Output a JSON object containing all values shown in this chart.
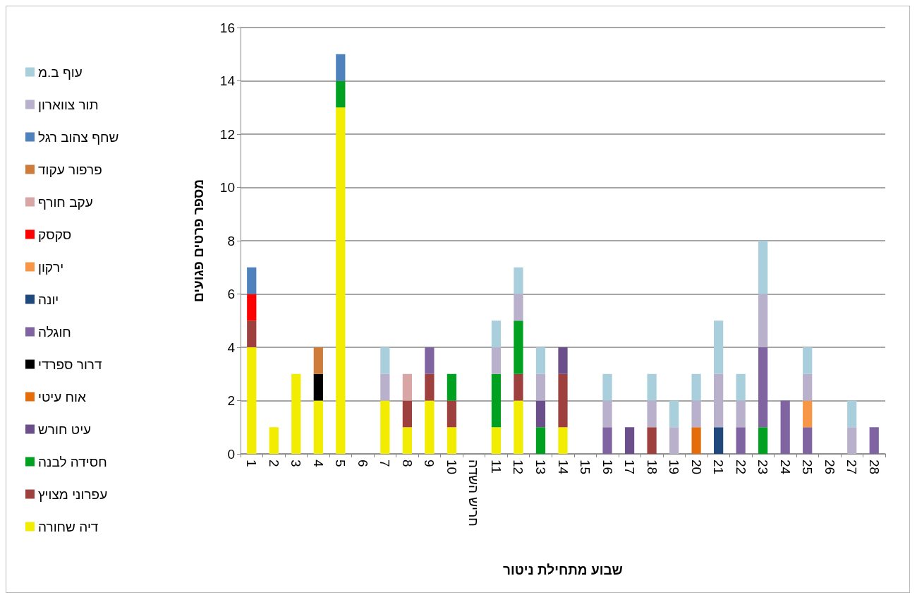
{
  "chart_data": {
    "type": "bar",
    "stacked": true,
    "xlabel": "שבוע מתחילת ניטור",
    "ylabel": "מספר פרטים פגועים",
    "categories": [
      "1",
      "2",
      "3",
      "4",
      "5",
      "6",
      "7",
      "8",
      "9",
      "10",
      "חריש השדה",
      "11",
      "12",
      "13",
      "14",
      "15",
      "16",
      "17",
      "18",
      "19",
      "20",
      "21",
      "22",
      "23",
      "24",
      "25",
      "26",
      "27",
      "28"
    ],
    "ylim": [
      0,
      16
    ],
    "yticks": [
      0,
      2,
      4,
      6,
      8,
      10,
      12,
      14,
      16
    ],
    "grid": "y",
    "legend": "left",
    "series": [
      {
        "name": "דיה שחורה",
        "color": "#f2ed00",
        "values": [
          4,
          1,
          3,
          2,
          13,
          null,
          2,
          1,
          2,
          1,
          null,
          1,
          2,
          null,
          1,
          null,
          null,
          null,
          null,
          null,
          null,
          null,
          null,
          null,
          null,
          null,
          null,
          null,
          null
        ]
      },
      {
        "name": "עפרוני מצויץ",
        "color": "#9e413e",
        "values": [
          1,
          null,
          null,
          null,
          null,
          null,
          null,
          1,
          1,
          1,
          null,
          null,
          1,
          null,
          2,
          null,
          null,
          null,
          1,
          null,
          null,
          null,
          null,
          null,
          null,
          null,
          null,
          null,
          null
        ]
      },
      {
        "name": "חסידה לבנה",
        "color": "#00a020",
        "values": [
          null,
          null,
          null,
          null,
          1,
          null,
          null,
          null,
          null,
          1,
          null,
          2,
          2,
          1,
          null,
          null,
          null,
          null,
          null,
          null,
          null,
          null,
          null,
          1,
          null,
          null,
          null,
          null,
          null
        ]
      },
      {
        "name": "עיט חורש",
        "color": "#6a4f8a",
        "values": [
          null,
          null,
          null,
          null,
          null,
          null,
          null,
          null,
          null,
          null,
          null,
          null,
          null,
          1,
          1,
          null,
          null,
          1,
          null,
          null,
          null,
          null,
          null,
          null,
          null,
          null,
          null,
          null,
          null
        ]
      },
      {
        "name": "אוח עיטי",
        "color": "#e46c0a",
        "values": [
          null,
          null,
          null,
          null,
          null,
          null,
          null,
          null,
          null,
          null,
          null,
          null,
          null,
          null,
          null,
          null,
          null,
          null,
          null,
          null,
          1,
          null,
          null,
          null,
          null,
          null,
          null,
          null,
          null
        ]
      },
      {
        "name": "דרור ספרדי",
        "color": "#000000",
        "values": [
          null,
          null,
          null,
          1,
          null,
          null,
          null,
          null,
          null,
          null,
          null,
          null,
          null,
          null,
          null,
          null,
          null,
          null,
          null,
          null,
          null,
          null,
          null,
          null,
          null,
          null,
          null,
          null,
          null
        ]
      },
      {
        "name": "חוגלה",
        "color": "#8064a2",
        "values": [
          null,
          null,
          null,
          null,
          null,
          null,
          null,
          null,
          1,
          null,
          null,
          null,
          null,
          null,
          null,
          null,
          1,
          null,
          null,
          null,
          null,
          null,
          1,
          3,
          2,
          1,
          null,
          null,
          1
        ]
      },
      {
        "name": "יונה",
        "color": "#1f497d",
        "values": [
          null,
          null,
          null,
          null,
          null,
          null,
          null,
          null,
          null,
          null,
          null,
          null,
          null,
          null,
          null,
          null,
          null,
          null,
          null,
          null,
          null,
          1,
          null,
          null,
          null,
          null,
          null,
          null,
          null
        ]
      },
      {
        "name": "ירקון",
        "color": "#f79646",
        "values": [
          null,
          null,
          null,
          null,
          null,
          null,
          null,
          null,
          null,
          null,
          null,
          null,
          null,
          null,
          null,
          null,
          null,
          null,
          null,
          null,
          null,
          null,
          null,
          null,
          null,
          1,
          null,
          null,
          null
        ]
      },
      {
        "name": "סקסק",
        "color": "#ff0000",
        "values": [
          1,
          null,
          null,
          null,
          null,
          null,
          null,
          null,
          null,
          null,
          null,
          null,
          null,
          null,
          null,
          null,
          null,
          null,
          null,
          null,
          null,
          null,
          null,
          null,
          null,
          null,
          null,
          null,
          null
        ]
      },
      {
        "name": "עקב חורף",
        "color": "#d9a6a6",
        "values": [
          null,
          null,
          null,
          null,
          null,
          null,
          null,
          1,
          null,
          null,
          null,
          null,
          null,
          null,
          null,
          null,
          null,
          null,
          null,
          null,
          null,
          null,
          null,
          null,
          null,
          null,
          null,
          null,
          null
        ]
      },
      {
        "name": "פרפור עקוד",
        "color": "#cd7c3a",
        "values": [
          null,
          null,
          null,
          1,
          null,
          null,
          null,
          null,
          null,
          null,
          null,
          null,
          null,
          null,
          null,
          null,
          null,
          null,
          null,
          null,
          null,
          null,
          null,
          null,
          null,
          null,
          null,
          null,
          null
        ]
      },
      {
        "name": "שחף צהוב רגל",
        "color": "#4f81bd",
        "values": [
          1,
          null,
          null,
          null,
          1,
          null,
          null,
          null,
          null,
          null,
          null,
          null,
          null,
          null,
          null,
          null,
          null,
          null,
          null,
          null,
          null,
          null,
          null,
          null,
          null,
          null,
          null,
          null,
          null
        ]
      },
      {
        "name": "תור צווארון",
        "color": "#b9b0cb",
        "values": [
          null,
          null,
          null,
          null,
          null,
          null,
          1,
          null,
          null,
          null,
          null,
          1,
          1,
          1,
          null,
          null,
          1,
          null,
          1,
          1,
          1,
          2,
          1,
          2,
          null,
          1,
          null,
          1,
          null
        ]
      },
      {
        "name": "עוף ב.מ",
        "color": "#a9cfdd",
        "values": [
          null,
          null,
          null,
          null,
          null,
          null,
          1,
          null,
          null,
          null,
          null,
          1,
          1,
          1,
          null,
          null,
          1,
          null,
          1,
          1,
          1,
          2,
          1,
          2,
          null,
          1,
          null,
          1,
          null
        ]
      }
    ]
  }
}
